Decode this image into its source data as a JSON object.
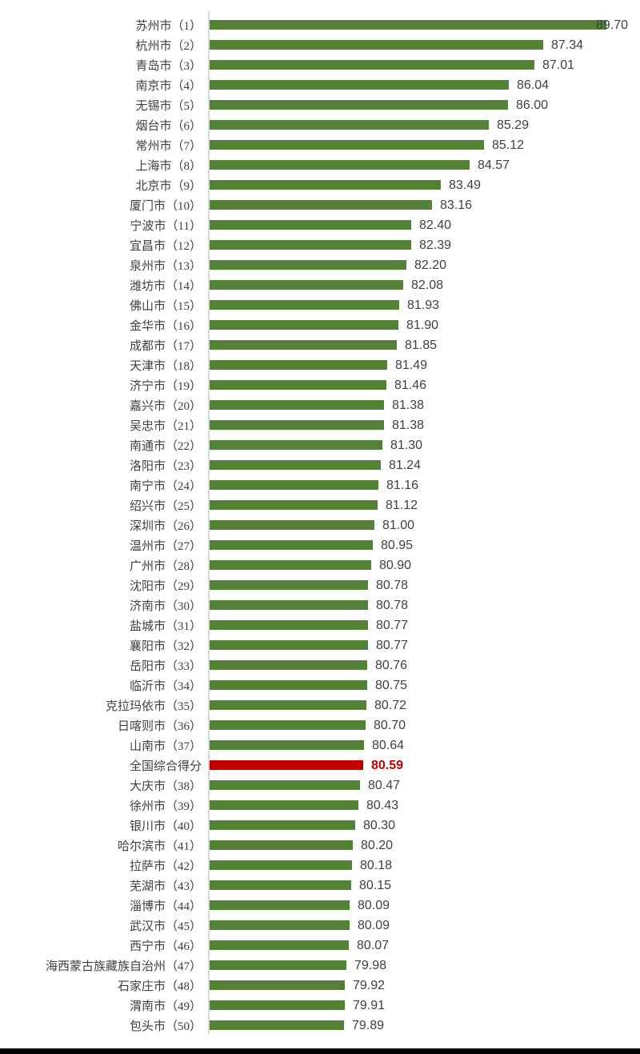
{
  "page": {
    "background_color": "#ffffff",
    "bottom_border_color": "#000000"
  },
  "chart_data": {
    "type": "bar",
    "orientation": "horizontal",
    "title": "",
    "xlabel": "",
    "ylabel": "",
    "legend": "none",
    "grid": "off",
    "xlim": [
      74.85,
      90.95
    ],
    "bar_color": "#538135",
    "highlight_color": "#C00000",
    "axis_line_color": "#D9D9D9",
    "label_text_color": "#3f3f3f",
    "value_text_color": "#404040",
    "rows": [
      {
        "label": "苏州市（1）",
        "value": 89.7,
        "display": "89.70",
        "highlight": false
      },
      {
        "label": "杭州市（2）",
        "value": 87.34,
        "display": "87.34",
        "highlight": false
      },
      {
        "label": "青岛市（3）",
        "value": 87.01,
        "display": "87.01",
        "highlight": false
      },
      {
        "label": "南京市（4）",
        "value": 86.04,
        "display": "86.04",
        "highlight": false
      },
      {
        "label": "无锡市（5）",
        "value": 86.0,
        "display": "86.00",
        "highlight": false
      },
      {
        "label": "烟台市（6）",
        "value": 85.29,
        "display": "85.29",
        "highlight": false
      },
      {
        "label": "常州市（7）",
        "value": 85.12,
        "display": "85.12",
        "highlight": false
      },
      {
        "label": "上海市（8）",
        "value": 84.57,
        "display": "84.57",
        "highlight": false
      },
      {
        "label": "北京市（9）",
        "value": 83.49,
        "display": "83.49",
        "highlight": false
      },
      {
        "label": "厦门市（10）",
        "value": 83.16,
        "display": "83.16",
        "highlight": false
      },
      {
        "label": "宁波市（11）",
        "value": 82.4,
        "display": "82.40",
        "highlight": false
      },
      {
        "label": "宜昌市（12）",
        "value": 82.39,
        "display": "82.39",
        "highlight": false
      },
      {
        "label": "泉州市（13）",
        "value": 82.2,
        "display": "82.20",
        "highlight": false
      },
      {
        "label": "潍坊市（14）",
        "value": 82.08,
        "display": "82.08",
        "highlight": false
      },
      {
        "label": "佛山市（15）",
        "value": 81.93,
        "display": "81.93",
        "highlight": false
      },
      {
        "label": "金华市（16）",
        "value": 81.9,
        "display": "81.90",
        "highlight": false
      },
      {
        "label": "成都市（17）",
        "value": 81.85,
        "display": "81.85",
        "highlight": false
      },
      {
        "label": "天津市（18）",
        "value": 81.49,
        "display": "81.49",
        "highlight": false
      },
      {
        "label": "济宁市（19）",
        "value": 81.46,
        "display": "81.46",
        "highlight": false
      },
      {
        "label": "嘉兴市（20）",
        "value": 81.38,
        "display": "81.38",
        "highlight": false
      },
      {
        "label": "吴忠市（21）",
        "value": 81.38,
        "display": "81.38",
        "highlight": false
      },
      {
        "label": "南通市（22）",
        "value": 81.3,
        "display": "81.30",
        "highlight": false
      },
      {
        "label": "洛阳市（23）",
        "value": 81.24,
        "display": "81.24",
        "highlight": false
      },
      {
        "label": "南宁市（24）",
        "value": 81.16,
        "display": "81.16",
        "highlight": false
      },
      {
        "label": "绍兴市（25）",
        "value": 81.12,
        "display": "81.12",
        "highlight": false
      },
      {
        "label": "深圳市（26）",
        "value": 81.0,
        "display": "81.00",
        "highlight": false
      },
      {
        "label": "温州市（27）",
        "value": 80.95,
        "display": "80.95",
        "highlight": false
      },
      {
        "label": "广州市（28）",
        "value": 80.9,
        "display": "80.90",
        "highlight": false
      },
      {
        "label": "沈阳市（29）",
        "value": 80.78,
        "display": "80.78",
        "highlight": false
      },
      {
        "label": "济南市（30）",
        "value": 80.78,
        "display": "80.78",
        "highlight": false
      },
      {
        "label": "盐城市（31）",
        "value": 80.77,
        "display": "80.77",
        "highlight": false
      },
      {
        "label": "襄阳市（32）",
        "value": 80.77,
        "display": "80.77",
        "highlight": false
      },
      {
        "label": "岳阳市（33）",
        "value": 80.76,
        "display": "80.76",
        "highlight": false
      },
      {
        "label": "临沂市（34）",
        "value": 80.75,
        "display": "80.75",
        "highlight": false
      },
      {
        "label": "克拉玛依市（35）",
        "value": 80.72,
        "display": "80.72",
        "highlight": false
      },
      {
        "label": "日喀则市（36）",
        "value": 80.7,
        "display": "80.70",
        "highlight": false
      },
      {
        "label": "山南市（37）",
        "value": 80.64,
        "display": "80.64",
        "highlight": false
      },
      {
        "label": "全国综合得分",
        "value": 80.59,
        "display": "80.59",
        "highlight": true
      },
      {
        "label": "大庆市（38）",
        "value": 80.47,
        "display": "80.47",
        "highlight": false
      },
      {
        "label": "徐州市（39）",
        "value": 80.43,
        "display": "80.43",
        "highlight": false
      },
      {
        "label": "银川市（40）",
        "value": 80.3,
        "display": "80.30",
        "highlight": false
      },
      {
        "label": "哈尔滨市（41）",
        "value": 80.2,
        "display": "80.20",
        "highlight": false
      },
      {
        "label": "拉萨市（42）",
        "value": 80.18,
        "display": "80.18",
        "highlight": false
      },
      {
        "label": "芜湖市（43）",
        "value": 80.15,
        "display": "80.15",
        "highlight": false
      },
      {
        "label": "淄博市（44）",
        "value": 80.09,
        "display": "80.09",
        "highlight": false
      },
      {
        "label": "武汉市（45）",
        "value": 80.09,
        "display": "80.09",
        "highlight": false
      },
      {
        "label": "西宁市（46）",
        "value": 80.07,
        "display": "80.07",
        "highlight": false
      },
      {
        "label": "海西蒙古族藏族自治州（47）",
        "value": 79.98,
        "display": "79.98",
        "highlight": false
      },
      {
        "label": "石家庄市（48）",
        "value": 79.92,
        "display": "79.92",
        "highlight": false
      },
      {
        "label": "渭南市（49）",
        "value": 79.91,
        "display": "79.91",
        "highlight": false
      },
      {
        "label": "包头市（50）",
        "value": 79.89,
        "display": "79.89",
        "highlight": false
      }
    ]
  }
}
